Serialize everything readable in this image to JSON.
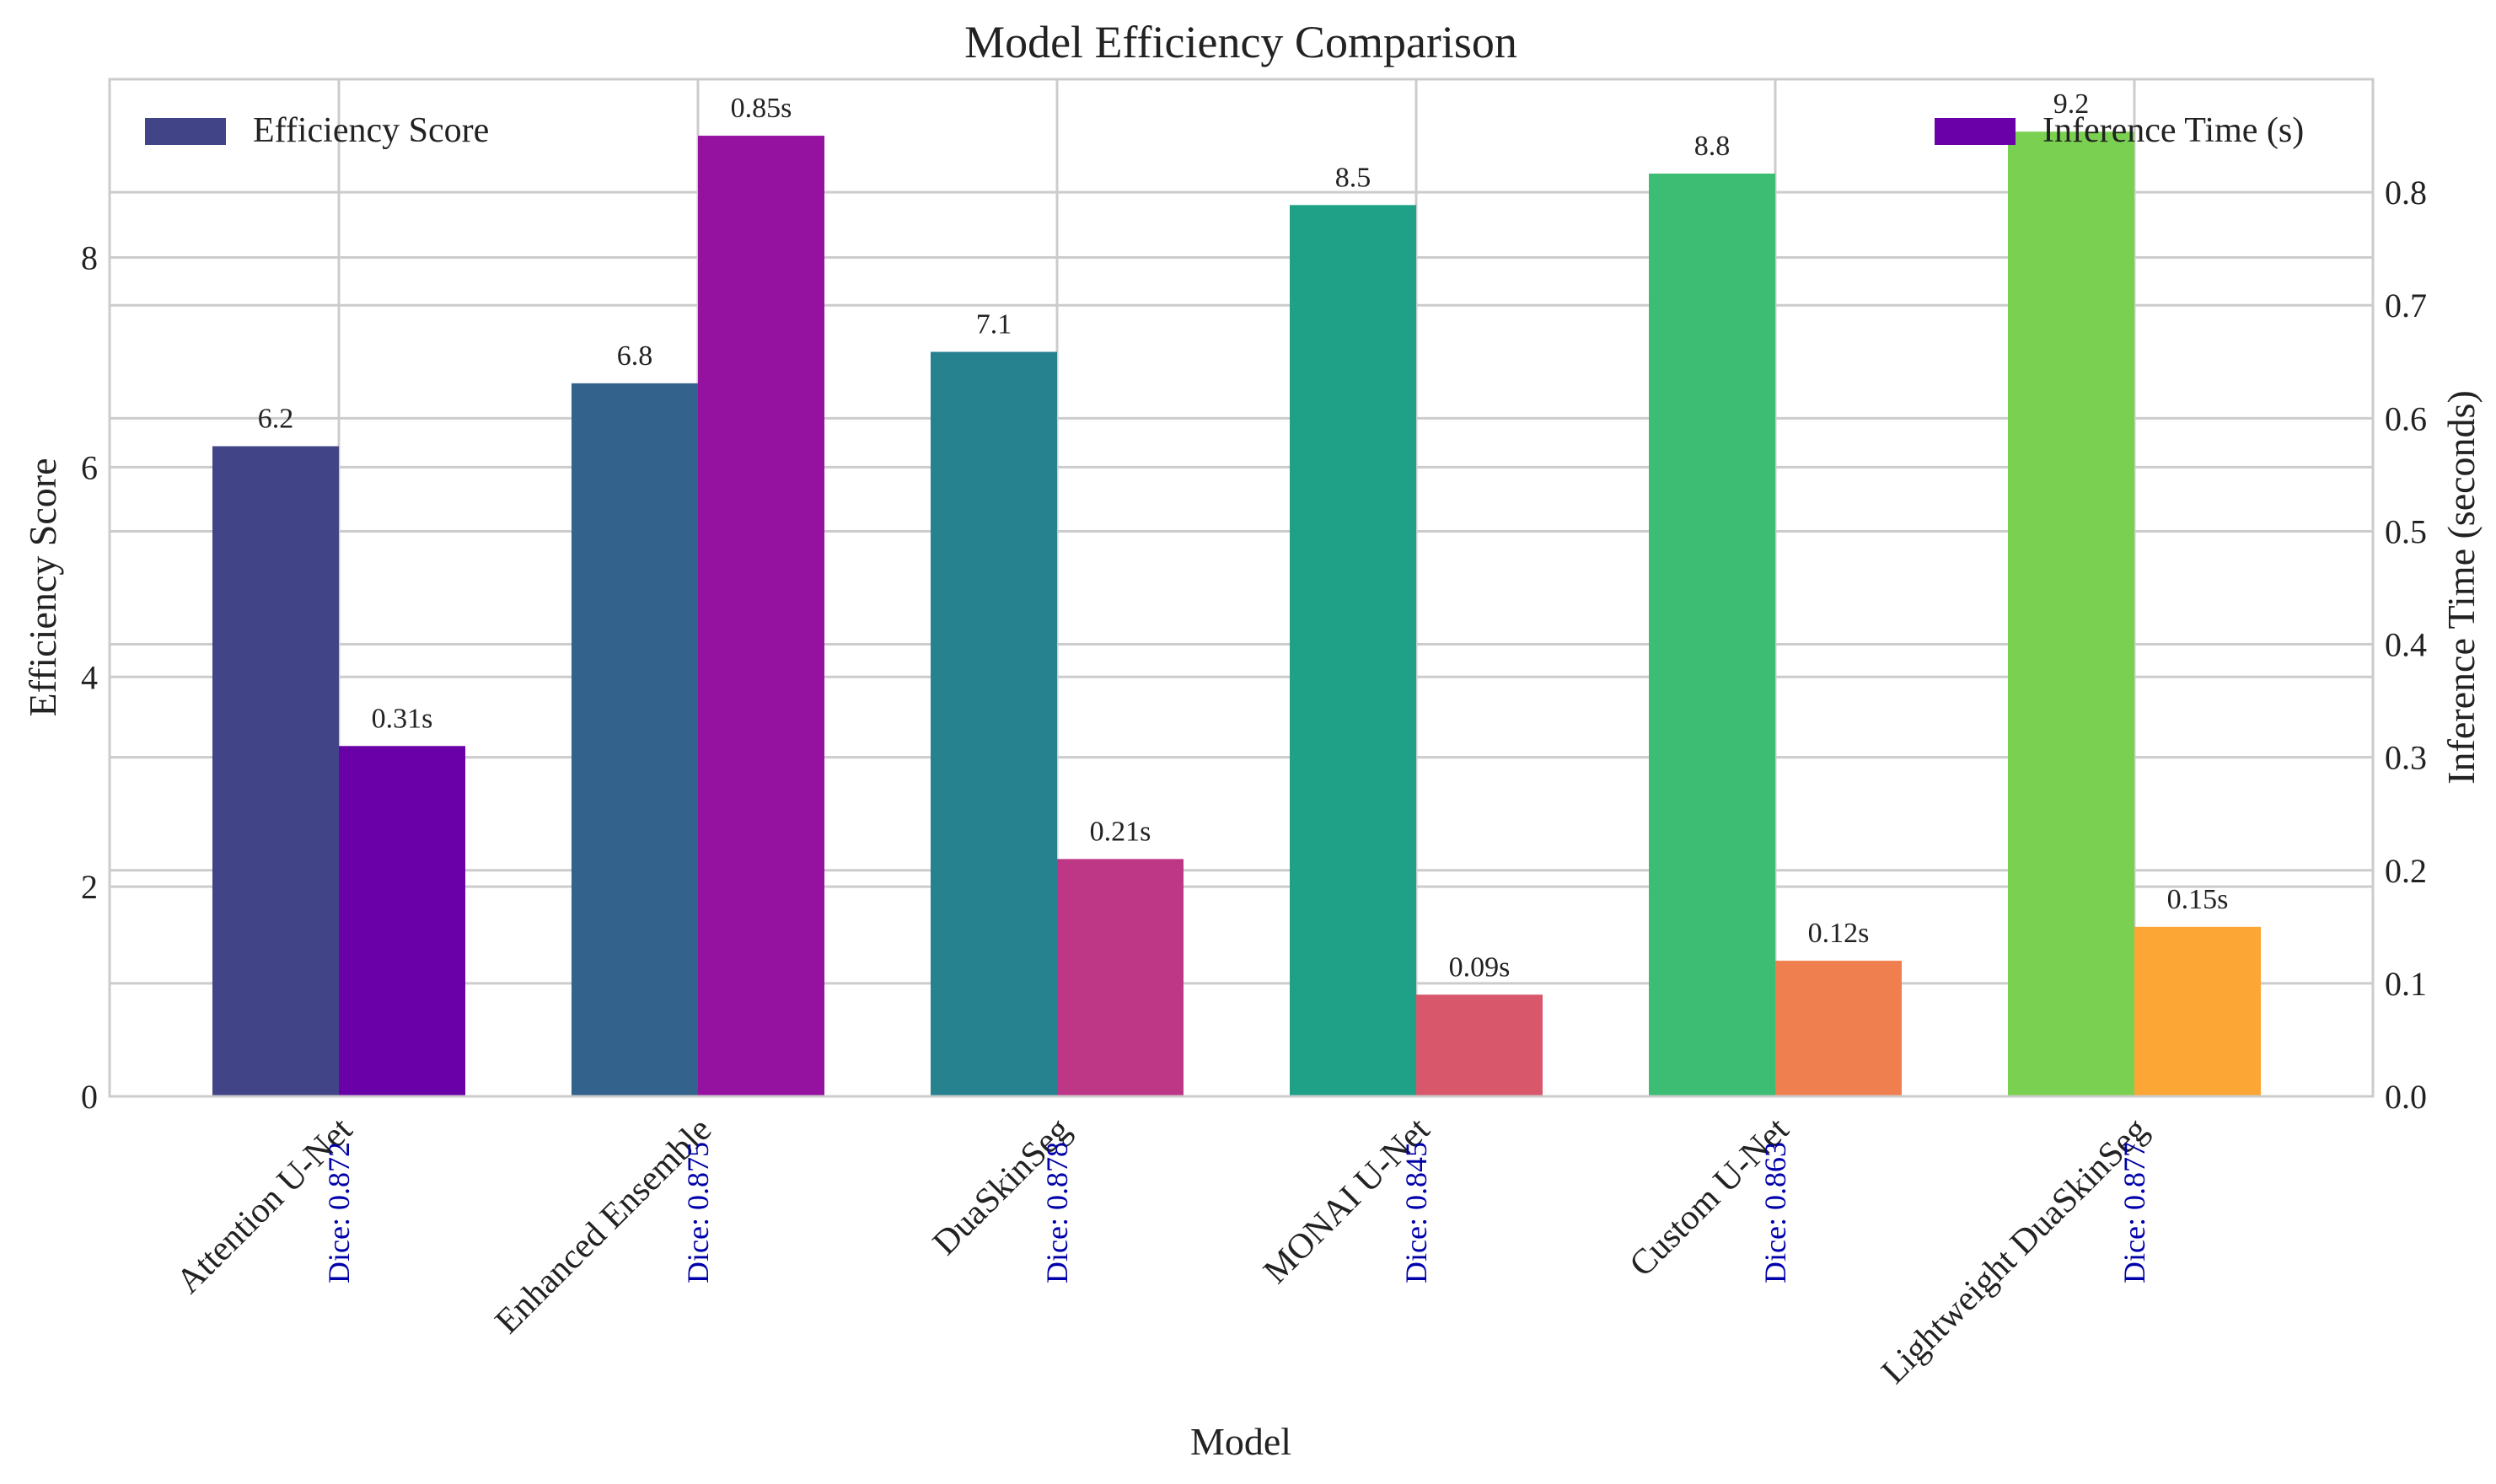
{
  "chart_data": {
    "type": "bar",
    "title": "Model Efficiency Comparison",
    "xlabel": "Model",
    "ylabel": "Efficiency Score",
    "y2label": "Inference Time (seconds)",
    "ylim": [
      0,
      9.7
    ],
    "y2lim": [
      0,
      0.9
    ],
    "yticks": [
      "0",
      "2",
      "4",
      "6",
      "8"
    ],
    "y2ticks": [
      "0.0",
      "0.1",
      "0.2",
      "0.3",
      "0.4",
      "0.5",
      "0.6",
      "0.7",
      "0.8"
    ],
    "grid": true,
    "categories": [
      "Attention U-Net",
      "Enhanced Ensemble",
      "DuaSkinSeg",
      "MONAI U-Net",
      "Custom U-Net",
      "Lightweight DuaSkinSeg"
    ],
    "series": [
      {
        "name": "Efficiency Score",
        "axis": "left",
        "values": [
          6.2,
          6.8,
          7.1,
          8.5,
          8.8,
          9.2
        ],
        "labels": [
          "6.2",
          "6.8",
          "7.1",
          "8.5",
          "8.8",
          "9.2"
        ],
        "colors": [
          "#414487",
          "#33638d",
          "#26828e",
          "#1fa187",
          "#3dbc74",
          "#7ad151"
        ]
      },
      {
        "name": "Inference Time (s)",
        "axis": "right",
        "values": [
          0.31,
          0.85,
          0.21,
          0.09,
          0.12,
          0.15
        ],
        "labels": [
          "0.31s",
          "0.85s",
          "0.21s",
          "0.09s",
          "0.12s",
          "0.15s"
        ],
        "colors": [
          "#6a00a8",
          "#9512a1",
          "#bd3786",
          "#d8576b",
          "#f07f4f",
          "#fca636"
        ]
      }
    ],
    "annotations": [
      "Dice: 0.872",
      "Dice: 0.875",
      "Dice: 0.878",
      "Dice: 0.845",
      "Dice: 0.863",
      "Dice: 0.877"
    ],
    "legend": [
      {
        "label": "Efficiency Score",
        "color": "#414487",
        "placement": "top-left"
      },
      {
        "label": "Inference Time (s)",
        "color": "#6a00a8",
        "placement": "top-right"
      }
    ]
  }
}
